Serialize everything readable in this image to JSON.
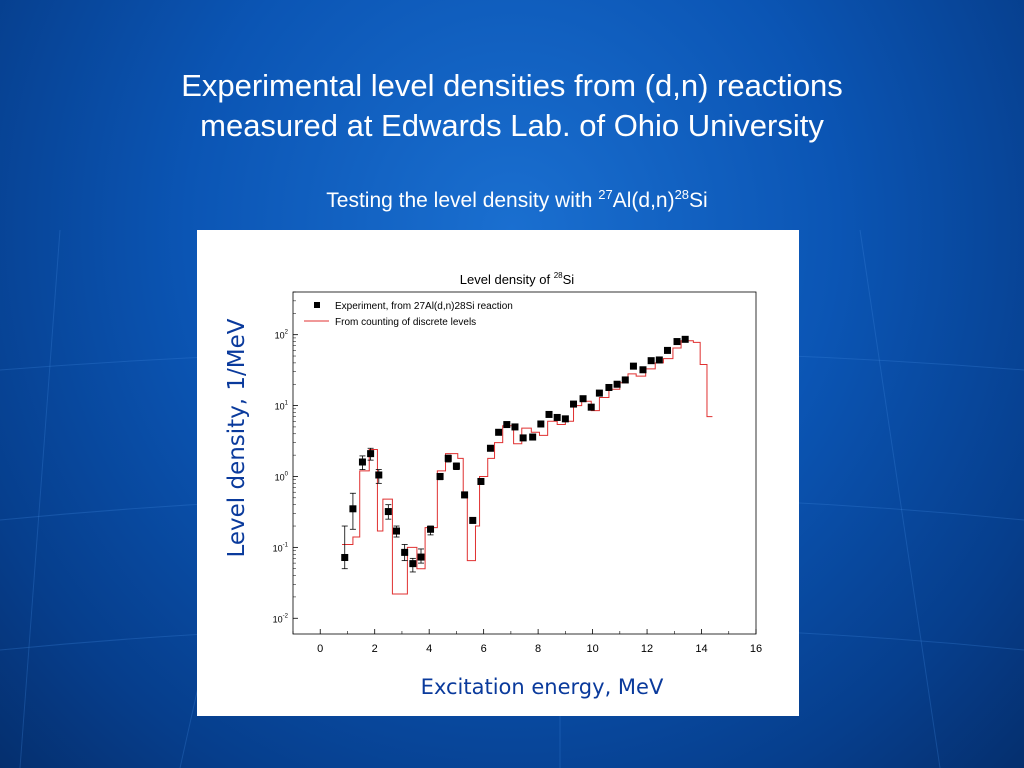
{
  "slide": {
    "title_line1": "Experimental level densities from (d,n) reactions",
    "title_line2": "measured at Edwards Lab. of Ohio University",
    "subtitle_prefix": "Testing the level density with ",
    "subtitle_sup1": "27",
    "subtitle_mid": "Al(d,n)",
    "subtitle_sup2": "28",
    "subtitle_suffix": "Si",
    "ylabel": "Level density, 1/MeV",
    "xlabel": "Excitation energy, MeV"
  },
  "chart_data": {
    "type": "scatter",
    "title_text": "Level density of ",
    "title_sup": "28",
    "title_suffix": "Si",
    "xlim": [
      -1,
      16
    ],
    "ylim": [
      0.006,
      400
    ],
    "yscale": "log",
    "x_ticks": [
      0,
      2,
      4,
      6,
      8,
      10,
      12,
      14,
      16
    ],
    "y_ticks": [
      {
        "value": 0.01,
        "base": "10",
        "exp": "-2"
      },
      {
        "value": 0.1,
        "base": "10",
        "exp": "-1"
      },
      {
        "value": 1,
        "base": "10",
        "exp": "0"
      },
      {
        "value": 10,
        "base": "10",
        "exp": "1"
      },
      {
        "value": 100,
        "base": "10",
        "exp": "2"
      }
    ],
    "legend_position": "top-left",
    "series": [
      {
        "name": "Experiment, from 27Al(d,n)28Si reaction",
        "kind": "points_with_errorbars",
        "color": "#000000",
        "points": [
          {
            "x": 0.9,
            "y": 0.072,
            "lo": 0.05,
            "hi": 0.2
          },
          {
            "x": 1.2,
            "y": 0.35,
            "lo": 0.18,
            "hi": 0.58
          },
          {
            "x": 1.55,
            "y": 1.6,
            "lo": 1.25,
            "hi": 1.95
          },
          {
            "x": 1.85,
            "y": 2.1,
            "lo": 1.7,
            "hi": 2.5
          },
          {
            "x": 2.15,
            "y": 1.05,
            "lo": 0.8,
            "hi": 1.25
          },
          {
            "x": 2.5,
            "y": 0.32,
            "lo": 0.25,
            "hi": 0.4
          },
          {
            "x": 2.8,
            "y": 0.17,
            "lo": 0.14,
            "hi": 0.2
          },
          {
            "x": 3.1,
            "y": 0.085,
            "lo": 0.065,
            "hi": 0.11
          },
          {
            "x": 3.4,
            "y": 0.059,
            "lo": 0.045,
            "hi": 0.07
          },
          {
            "x": 3.7,
            "y": 0.073,
            "lo": 0.06,
            "hi": 0.095
          },
          {
            "x": 4.05,
            "y": 0.18,
            "lo": 0.15,
            "hi": 0.2
          },
          {
            "x": 4.4,
            "y": 1.0,
            "lo": 0.9,
            "hi": 1.1
          },
          {
            "x": 4.7,
            "y": 1.8,
            "lo": 1.6,
            "hi": 2.0
          },
          {
            "x": 5.0,
            "y": 1.4,
            "lo": 1.25,
            "hi": 1.55
          },
          {
            "x": 5.3,
            "y": 0.55,
            "lo": 0.5,
            "hi": 0.6
          },
          {
            "x": 5.6,
            "y": 0.24,
            "lo": 0.22,
            "hi": 0.26
          },
          {
            "x": 5.9,
            "y": 0.85,
            "lo": 0.8,
            "hi": 0.9
          },
          {
            "x": 6.25,
            "y": 2.5,
            "lo": 2.3,
            "hi": 2.7
          },
          {
            "x": 6.55,
            "y": 4.2,
            "lo": 3.9,
            "hi": 4.5
          },
          {
            "x": 6.85,
            "y": 5.4,
            "lo": 5.1,
            "hi": 5.7
          },
          {
            "x": 7.15,
            "y": 5.0,
            "lo": 4.7,
            "hi": 5.3
          },
          {
            "x": 7.45,
            "y": 3.5,
            "lo": 3.3,
            "hi": 3.7
          },
          {
            "x": 7.8,
            "y": 3.6,
            "lo": 3.4,
            "hi": 3.8
          },
          {
            "x": 8.1,
            "y": 5.5,
            "lo": 5.2,
            "hi": 5.8
          },
          {
            "x": 8.4,
            "y": 7.5,
            "lo": 7.1,
            "hi": 7.9
          },
          {
            "x": 8.7,
            "y": 6.8,
            "lo": 6.4,
            "hi": 7.2
          },
          {
            "x": 9.0,
            "y": 6.5,
            "lo": 6.1,
            "hi": 6.9
          },
          {
            "x": 9.3,
            "y": 10.5,
            "lo": 9.9,
            "hi": 11.1
          },
          {
            "x": 9.65,
            "y": 12.5,
            "lo": 11.8,
            "hi": 13.2
          },
          {
            "x": 9.95,
            "y": 9.5,
            "lo": 9.0,
            "hi": 10.0
          },
          {
            "x": 10.25,
            "y": 15.0,
            "lo": 14.2,
            "hi": 15.8
          },
          {
            "x": 10.6,
            "y": 18.0,
            "lo": 17.0,
            "hi": 19.0
          },
          {
            "x": 10.9,
            "y": 20.0,
            "lo": 19.0,
            "hi": 21.0
          },
          {
            "x": 11.2,
            "y": 23.0,
            "lo": 22.0,
            "hi": 24.0
          },
          {
            "x": 11.5,
            "y": 36.0,
            "lo": 34.0,
            "hi": 38.0
          },
          {
            "x": 11.85,
            "y": 32.0,
            "lo": 30.0,
            "hi": 34.0
          },
          {
            "x": 12.15,
            "y": 43.0,
            "lo": 41.0,
            "hi": 45.0
          },
          {
            "x": 12.45,
            "y": 44.0,
            "lo": 42.0,
            "hi": 46.0
          },
          {
            "x": 12.75,
            "y": 60.0,
            "lo": 57.0,
            "hi": 63.0
          },
          {
            "x": 13.1,
            "y": 80.0,
            "lo": 76.0,
            "hi": 84.0
          },
          {
            "x": 13.4,
            "y": 86.0,
            "lo": 82.0,
            "hi": 90.0
          }
        ]
      },
      {
        "name": "From counting of discrete levels",
        "kind": "step",
        "color": "#e03030",
        "steps": [
          [
            0.8,
            0.11
          ],
          [
            1.2,
            0.14
          ],
          [
            1.45,
            1.2
          ],
          [
            1.8,
            2.4
          ],
          [
            2.1,
            0.17
          ],
          [
            2.3,
            0.48
          ],
          [
            2.65,
            0.022
          ],
          [
            3.2,
            0.1
          ],
          [
            3.55,
            0.05
          ],
          [
            3.85,
            0.19
          ],
          [
            4.3,
            1.2
          ],
          [
            4.6,
            2.1
          ],
          [
            5.05,
            1.8
          ],
          [
            5.25,
            0.55
          ],
          [
            5.4,
            0.065
          ],
          [
            5.7,
            0.2
          ],
          [
            5.85,
            1.0
          ],
          [
            6.15,
            1.8
          ],
          [
            6.4,
            3.0
          ],
          [
            6.7,
            5.2
          ],
          [
            7.1,
            2.9
          ],
          [
            7.4,
            4.8
          ],
          [
            7.75,
            4.2
          ],
          [
            8.05,
            3.8
          ],
          [
            8.35,
            6.0
          ],
          [
            8.7,
            5.4
          ],
          [
            9.0,
            6.0
          ],
          [
            9.3,
            10.0
          ],
          [
            9.6,
            11.5
          ],
          [
            9.95,
            8.5
          ],
          [
            10.25,
            13.0
          ],
          [
            10.6,
            17.0
          ],
          [
            11.0,
            21.0
          ],
          [
            11.3,
            28.0
          ],
          [
            11.6,
            26.0
          ],
          [
            11.95,
            33.0
          ],
          [
            12.3,
            40.0
          ],
          [
            12.6,
            46.0
          ],
          [
            12.95,
            65.0
          ],
          [
            13.25,
            82.0
          ],
          [
            13.7,
            78.0
          ],
          [
            13.95,
            38.0
          ],
          [
            14.2,
            7.0
          ]
        ],
        "x_end": 14.4
      }
    ]
  }
}
